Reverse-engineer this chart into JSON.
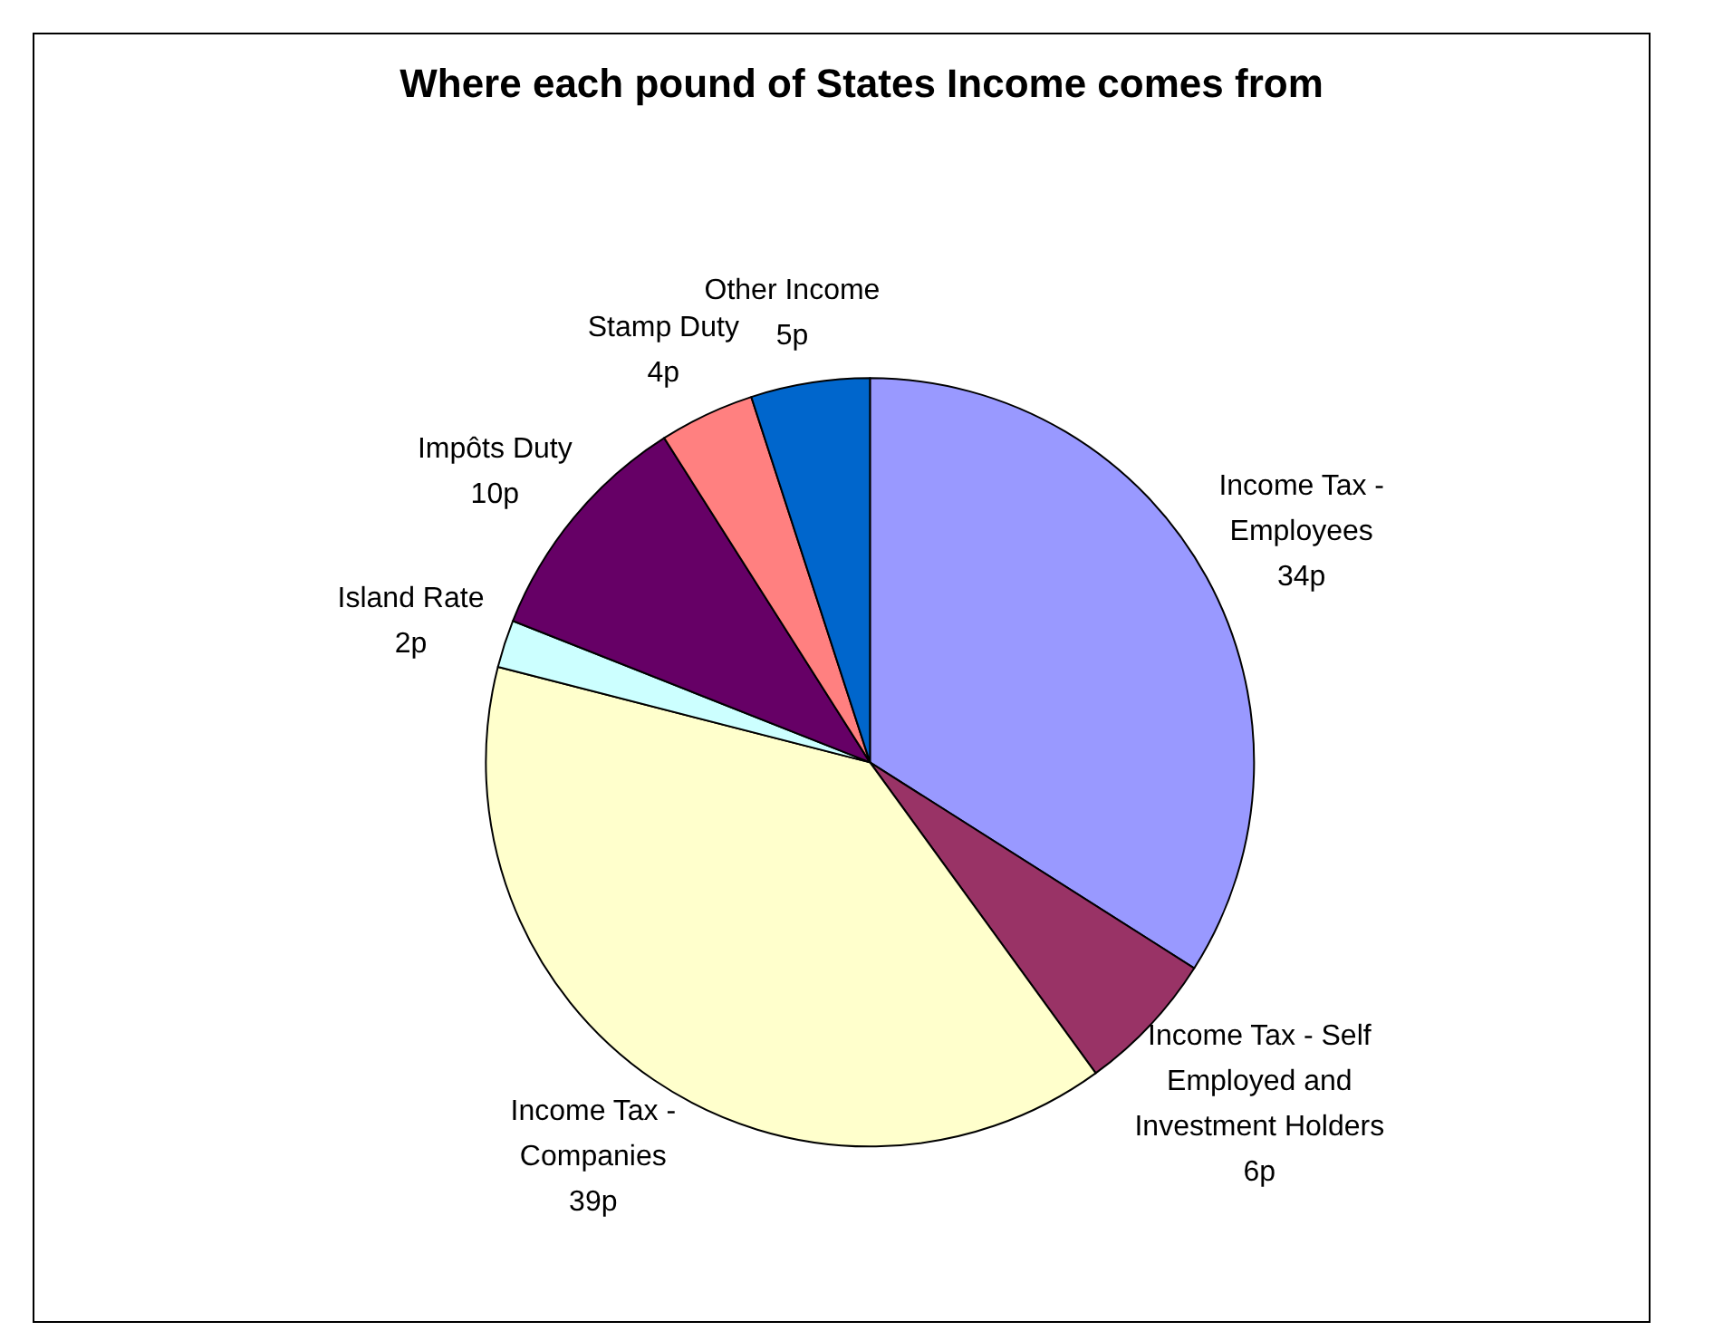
{
  "chart_data": {
    "type": "pie",
    "title": "Where each pound of States Income comes from",
    "categories": [
      "Income Tax - Employees",
      "Income Tax - Self Employed and Investment Holders",
      "Income Tax - Companies",
      "Island Rate",
      "Impôts Duty",
      "Stamp Duty",
      "Other Income"
    ],
    "values": [
      34,
      6,
      39,
      2,
      10,
      4,
      5
    ],
    "value_labels": [
      "34p",
      "6p",
      "39p",
      "2p",
      "10p",
      "4p",
      "5p"
    ],
    "colors": [
      "#9999ff",
      "#993366",
      "#ffffcc",
      "#ccffff",
      "#660066",
      "#ff8080",
      "#0066cc"
    ],
    "legend": false
  }
}
